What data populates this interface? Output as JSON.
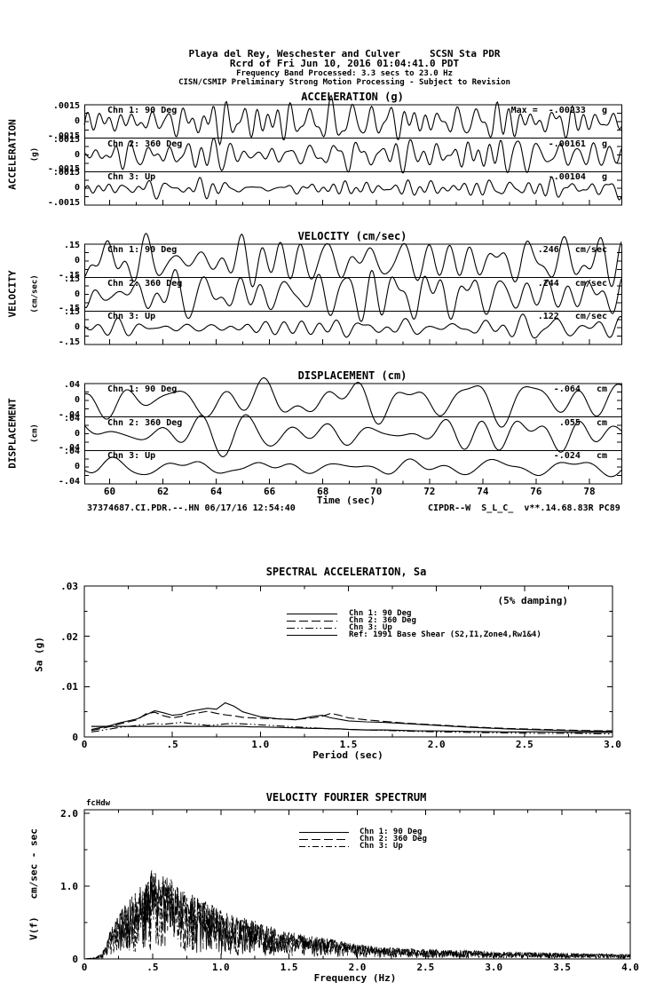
{
  "header": {
    "line1": "Playa del Rey, Weschester and Culver     SCSN Sta PDR",
    "line2": "Rcrd of Fri Jun 10, 2016 01:04:41.0 PDT",
    "line3": "Frequency Band Processed: 3.3 secs to 23.0 Hz",
    "line4": "CISN/CSMIP Preliminary Strong Motion Processing - Subject to Revision"
  },
  "footer": {
    "left": "37374687.CI.PDR.--.HN 06/17/16 12:54:40",
    "right": "CIPDR--W  S_L_C_  v**.14.68.83R PC89"
  },
  "time_axis": {
    "label": "Time (sec)",
    "ticks": [
      "60",
      "62",
      "64",
      "66",
      "68",
      "70",
      "72",
      "74",
      "76",
      "78"
    ]
  },
  "chart_data": [
    {
      "type": "line",
      "id": "acceleration-time-series",
      "title": "ACCELERATION (g)",
      "side_label": "ACCELERATION",
      "side_unit": "(g)",
      "ylim": [
        -0.0015,
        0.0015
      ],
      "ytick_labels": [
        ".0015",
        "0",
        "-.0015"
      ],
      "xlabel": "Time (sec)",
      "x_range_sec": [
        59.1,
        79.2
      ],
      "channels": [
        {
          "name": "Chn 1: 90 Deg",
          "peak": -0.00233,
          "peak_label": "Max =  -.00233   g"
        },
        {
          "name": "Chn 2: 360 Deg",
          "peak": -0.00161,
          "peak_label": "-.00161   g"
        },
        {
          "name": "Chn 3: Up",
          "peak": -0.00104,
          "peak_label": "-.00104   g"
        }
      ]
    },
    {
      "type": "line",
      "id": "velocity-time-series",
      "title": "VELOCITY (cm/sec)",
      "side_label": "VELOCITY",
      "side_unit": "(cm/sec)",
      "ylim": [
        -0.15,
        0.15
      ],
      "ytick_labels": [
        ".15",
        "0",
        "-.15"
      ],
      "xlabel": "Time (sec)",
      "x_range_sec": [
        59.1,
        79.2
      ],
      "channels": [
        {
          "name": "Chn 1: 90 Deg",
          "peak": 0.246,
          "peak_label": ".246   cm/sec"
        },
        {
          "name": "Chn 2: 360 Deg",
          "peak": 0.244,
          "peak_label": ".244   cm/sec"
        },
        {
          "name": "Chn 3: Up",
          "peak": 0.122,
          "peak_label": ".122   cm/sec"
        }
      ]
    },
    {
      "type": "line",
      "id": "displacement-time-series",
      "title": "DISPLACEMENT (cm)",
      "side_label": "DISPLACEMENT",
      "side_unit": "(cm)",
      "ylim": [
        -0.04,
        0.04
      ],
      "ytick_labels": [
        ".04",
        "0",
        "-.04"
      ],
      "xlabel": "Time (sec)",
      "x_range_sec": [
        59.1,
        79.2
      ],
      "channels": [
        {
          "name": "Chn 1: 90 Deg",
          "peak": -0.064,
          "peak_label": "-.064   cm"
        },
        {
          "name": "Chn 2: 360 Deg",
          "peak": 0.055,
          "peak_label": ".055   cm"
        },
        {
          "name": "Chn 3: Up",
          "peak": -0.024,
          "peak_label": "-.024   cm"
        }
      ]
    },
    {
      "type": "line",
      "id": "spectral-acceleration",
      "title": "SPECTRAL ACCELERATION, Sa",
      "annotation": "(5% damping)",
      "xlabel": "Period (sec)",
      "ylabel": "Sa (g)",
      "xlim": [
        0,
        3.0
      ],
      "ylim": [
        0,
        0.03
      ],
      "xtick_labels": [
        "0",
        ".5",
        "1.0",
        "1.5",
        "2.0",
        "2.5",
        "3.0"
      ],
      "ytick_labels": [
        ".03",
        ".02",
        ".01",
        "0"
      ],
      "x": [
        0.04,
        0.1,
        0.15,
        0.2,
        0.25,
        0.3,
        0.35,
        0.4,
        0.45,
        0.5,
        0.55,
        0.6,
        0.65,
        0.7,
        0.75,
        0.8,
        0.85,
        0.9,
        0.95,
        1.0,
        1.1,
        1.2,
        1.3,
        1.35,
        1.4,
        1.45,
        1.5,
        1.6,
        1.7,
        1.8,
        1.9,
        2.0,
        2.2,
        2.4,
        2.6,
        2.8,
        3.0
      ],
      "series": [
        {
          "name": "Chn 1: 90 Deg",
          "style": "solid",
          "values": [
            0.0015,
            0.0019,
            0.0023,
            0.0028,
            0.0032,
            0.0036,
            0.0044,
            0.0052,
            0.0048,
            0.0043,
            0.0045,
            0.0051,
            0.0054,
            0.0057,
            0.0055,
            0.0068,
            0.0061,
            0.005,
            0.0045,
            0.004,
            0.0036,
            0.0034,
            0.0041,
            0.0043,
            0.0038,
            0.0035,
            0.0032,
            0.003,
            0.0029,
            0.0027,
            0.0025,
            0.0023,
            0.0019,
            0.0016,
            0.0014,
            0.0012,
            0.0011
          ]
        },
        {
          "name": "Chn 2: 360 Deg",
          "style": "long-dash",
          "values": [
            0.0013,
            0.0017,
            0.0021,
            0.0026,
            0.003,
            0.0034,
            0.0046,
            0.0049,
            0.0042,
            0.0038,
            0.0041,
            0.0045,
            0.0048,
            0.0051,
            0.0047,
            0.0044,
            0.0042,
            0.0039,
            0.0038,
            0.0037,
            0.0036,
            0.0035,
            0.0038,
            0.0041,
            0.0047,
            0.0043,
            0.0038,
            0.0034,
            0.0031,
            0.0028,
            0.0026,
            0.0024,
            0.002,
            0.0017,
            0.0015,
            0.0013,
            0.0012
          ]
        },
        {
          "name": "Chn 3: Up",
          "style": "dash-dot-dot",
          "values": [
            0.001,
            0.0013,
            0.0016,
            0.0019,
            0.0021,
            0.0023,
            0.0025,
            0.0027,
            0.0025,
            0.0027,
            0.0029,
            0.0027,
            0.0025,
            0.0023,
            0.0024,
            0.0026,
            0.0027,
            0.0026,
            0.0025,
            0.0024,
            0.0022,
            0.002,
            0.0018,
            0.0017,
            0.0016,
            0.0016,
            0.0015,
            0.0014,
            0.0013,
            0.0012,
            0.0011,
            0.001,
            0.0009,
            0.0008,
            0.0007,
            0.0007,
            0.0006
          ]
        },
        {
          "name": "Ref: 1991 Base Shear (S2,I1,Zone4,Rw1&4)",
          "style": "solid",
          "values": [
            0.0021,
            0.0021,
            0.0021,
            0.0021,
            0.0021,
            0.0021,
            0.0021,
            0.0021,
            0.0021,
            0.0021,
            0.0021,
            0.0021,
            0.0021,
            0.0021,
            0.0021,
            0.0021,
            0.0021,
            0.0021,
            0.002,
            0.002,
            0.0019,
            0.0018,
            0.0017,
            0.0017,
            0.0016,
            0.0016,
            0.0015,
            0.0014,
            0.0014,
            0.0013,
            0.0012,
            0.0012,
            0.0011,
            0.001,
            0.001,
            0.0009,
            0.0009
          ]
        }
      ]
    },
    {
      "type": "line",
      "id": "velocity-fourier-spectrum",
      "title": "VELOCITY FOURIER SPECTRUM",
      "annotation": "fcHdw",
      "xlabel": "Frequency (Hz)",
      "ylabel": "V(f)   cm/sec - sec",
      "xlim": [
        0,
        4.0
      ],
      "ylim": [
        0,
        2.0
      ],
      "xtick_labels": [
        "0",
        ".5",
        "1.0",
        "1.5",
        "2.0",
        "2.5",
        "3.0",
        "3.5",
        "4.0"
      ],
      "ytick_labels": [
        "2.0",
        "1.0",
        "0"
      ],
      "peak_value": 1.25,
      "peak_frequency_hz": 0.5,
      "envelope_x": [
        0.0,
        0.08,
        0.12,
        0.15,
        0.2,
        0.25,
        0.3,
        0.35,
        0.4,
        0.45,
        0.5,
        0.55,
        0.6,
        0.65,
        0.7,
        0.8,
        0.9,
        1.0,
        1.1,
        1.2,
        1.3,
        1.4,
        1.5,
        1.6,
        1.8,
        2.0,
        2.2,
        2.5,
        2.8,
        3.0,
        3.2,
        3.5,
        3.8,
        4.0
      ],
      "envelope_y": [
        0.0,
        0.02,
        0.06,
        0.15,
        0.45,
        0.62,
        0.78,
        0.88,
        0.98,
        1.08,
        1.25,
        1.12,
        1.18,
        1.05,
        0.95,
        0.9,
        0.78,
        0.68,
        0.6,
        0.55,
        0.5,
        0.42,
        0.38,
        0.33,
        0.28,
        0.2,
        0.16,
        0.13,
        0.12,
        0.1,
        0.09,
        0.08,
        0.07,
        0.06
      ],
      "series": [
        {
          "name": "Chn 1: 90 Deg",
          "style": "solid"
        },
        {
          "name": "Chn 2: 360 Deg",
          "style": "long-dash"
        },
        {
          "name": "Chn 3: Up",
          "style": "dash-dot"
        }
      ]
    }
  ]
}
